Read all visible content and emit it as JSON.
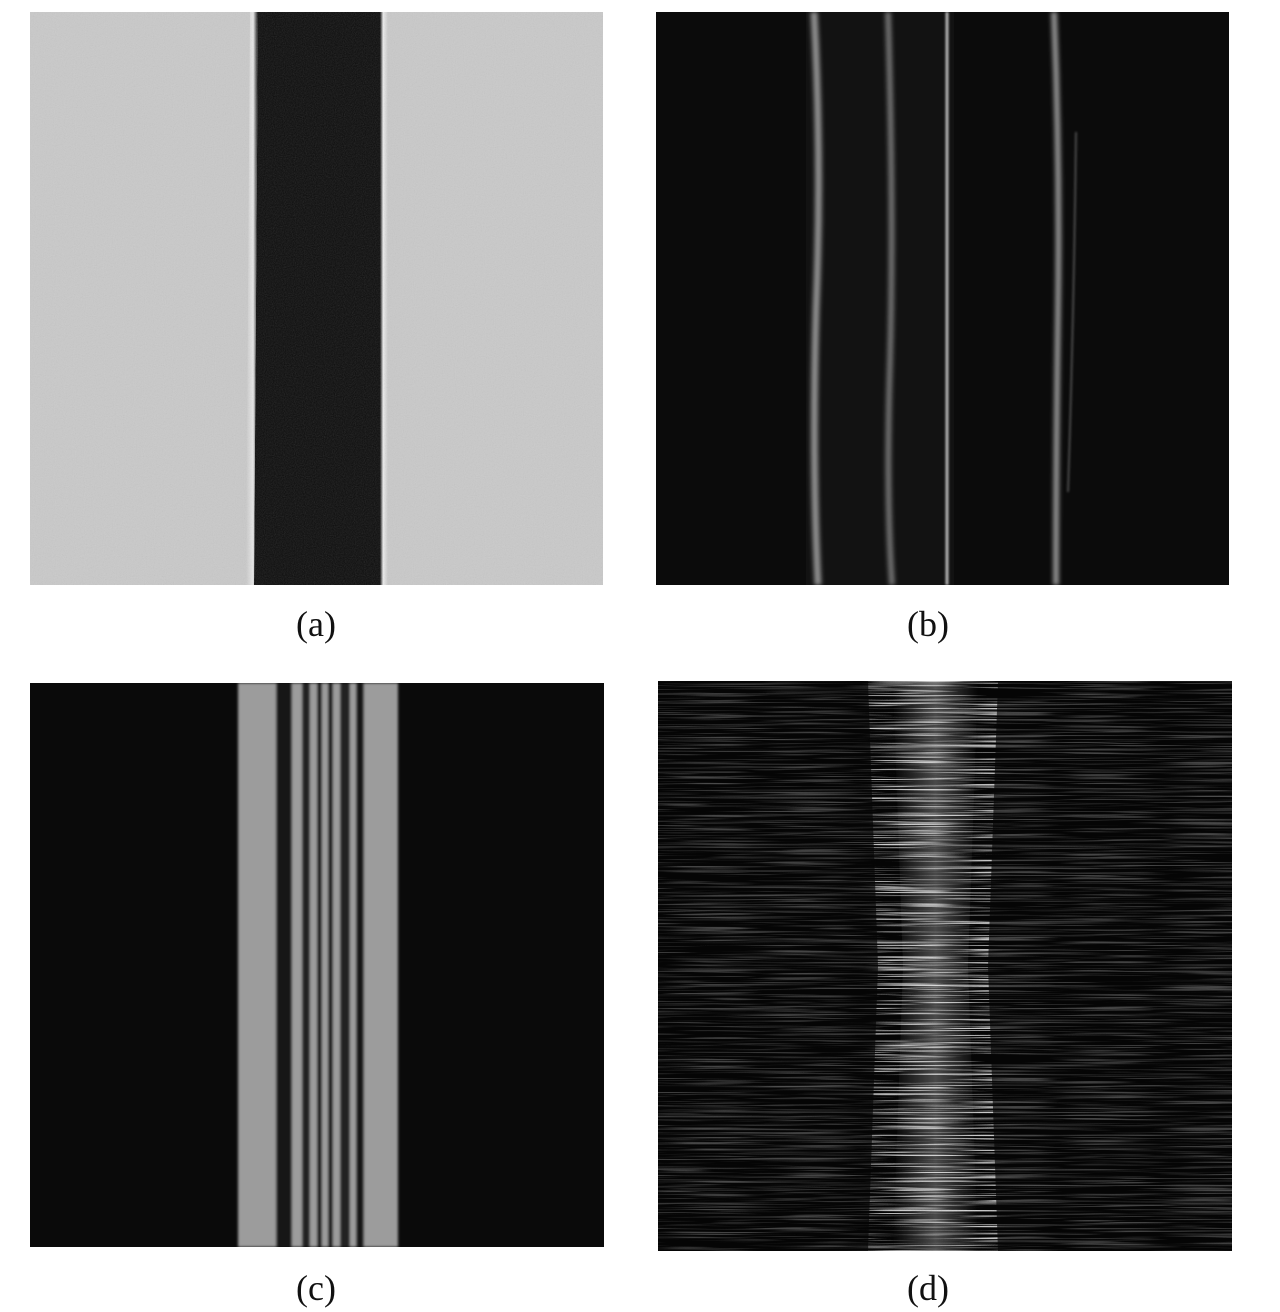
{
  "panels": [
    {
      "id": "a",
      "caption": "(a)",
      "description_name": "bright-field-image"
    },
    {
      "id": "b",
      "caption": "(b)",
      "description_name": "edge-fringe-image"
    },
    {
      "id": "c",
      "caption": "(c)",
      "description_name": "multi-band-image"
    },
    {
      "id": "d",
      "caption": "(d)",
      "description_name": "noisy-streak-image"
    }
  ],
  "colors": {
    "background": "#ffffff",
    "panel_a_field": "#c9c9c9",
    "panel_a_band": "#0b0b0b",
    "panel_b_field": "#0b0b0b",
    "panel_b_lines": "#8e8e8e",
    "panel_c_field": "#0a0a0a",
    "panel_c_bands": "#9c9c9c",
    "panel_d_field": "#050505",
    "panel_d_streaks": "#d8d8d8"
  }
}
